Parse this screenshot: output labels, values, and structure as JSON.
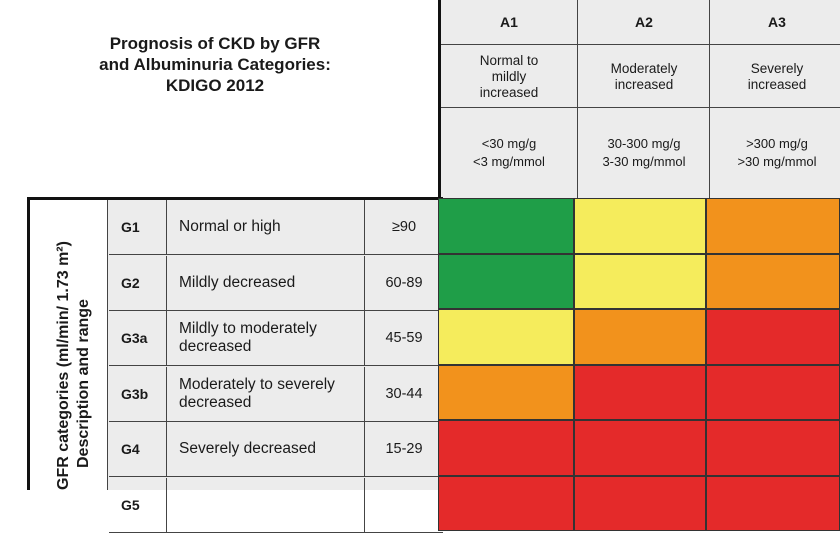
{
  "title": {
    "line1": "Prognosis of CKD by GFR",
    "line2": "and Albuminuria Categories:",
    "line3": "KDIGO 2012"
  },
  "albuminuria_categories": [
    {
      "code": "A1",
      "description": [
        "Normal to",
        "mildly",
        "increased"
      ],
      "range": [
        "<30 mg/g",
        "<3 mg/mmol"
      ]
    },
    {
      "code": "A2",
      "description": [
        "Moderately",
        "increased"
      ],
      "range": [
        "30-300 mg/g",
        "3-30 mg/mmol"
      ]
    },
    {
      "code": "A3",
      "description": [
        "Severely",
        "increased"
      ],
      "range": [
        ">300 mg/g",
        ">30 mg/mmol"
      ]
    }
  ],
  "gfr_axis_label": {
    "line1": "GFR categories (ml/min/ 1.73 m²)",
    "line2": "Description and range"
  },
  "gfr_categories": [
    {
      "code": "G1",
      "description": "Normal or high",
      "range": "≥90"
    },
    {
      "code": "G2",
      "description": "Mildly decreased",
      "range": "60-89"
    },
    {
      "code": "G3a",
      "description": "Mildly to moderately decreased",
      "range": "45-59"
    },
    {
      "code": "G3b",
      "description": "Moderately to severely decreased",
      "range": "30-44"
    },
    {
      "code": "G4",
      "description": "Severely decreased",
      "range": "15-29"
    },
    {
      "code": "G5",
      "description": "",
      "range": ""
    }
  ],
  "risk_colors": {
    "green": "#1f9e48",
    "yellow": "#f5ec5c",
    "orange": "#f2921c",
    "red": "#e42a2a"
  },
  "risk_grid": [
    [
      "green",
      "yellow",
      "orange"
    ],
    [
      "green",
      "yellow",
      "orange"
    ],
    [
      "yellow",
      "orange",
      "red"
    ],
    [
      "orange",
      "red",
      "red"
    ],
    [
      "red",
      "red",
      "red"
    ],
    [
      "red",
      "red",
      "red"
    ]
  ]
}
